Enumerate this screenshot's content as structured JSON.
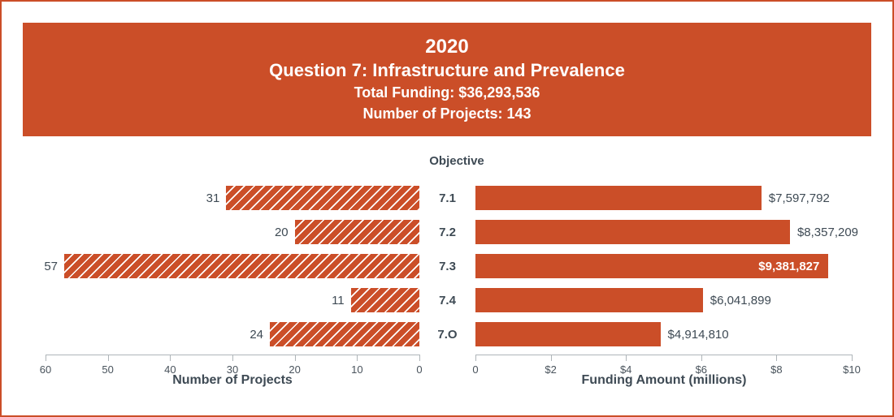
{
  "colors": {
    "accent": "#CB4E28",
    "text": "#3E4A54",
    "tick_text": "#49535C",
    "axis_line": "#AFB5B9",
    "background": "#FFFFFF"
  },
  "chart_data": {
    "type": "bar",
    "variant": "diverging-horizontal",
    "title_block": {
      "year": "2020",
      "title": "Question 7: Infrastructure and Prevalence",
      "total_funding": "Total Funding: $36,293,536",
      "number_of_projects": "Number of Projects: 143"
    },
    "center_header": "Objective",
    "categories": [
      "7.1",
      "7.2",
      "7.3",
      "7.4",
      "7.O"
    ],
    "left": {
      "name": "Number of Projects",
      "xlabel": "Number of Projects",
      "values": [
        31,
        20,
        57,
        11,
        24
      ],
      "value_labels": [
        "31",
        "20",
        "57",
        "11",
        "24"
      ],
      "ticks": [
        "60",
        "50",
        "40",
        "30",
        "20",
        "10",
        "0"
      ],
      "axis_min": 0,
      "axis_max": 60,
      "direction": "leftward",
      "bar_style": "hatched"
    },
    "right": {
      "name": "Funding Amount",
      "xlabel": "Funding Amount (millions)",
      "values": [
        7597792,
        8357209,
        9381827,
        6041899,
        4914810
      ],
      "value_labels": [
        "$7,597,792",
        "$8,357,209",
        "$9,381,827",
        "$6,041,899",
        "$4,914,810"
      ],
      "label_inside": [
        false,
        false,
        true,
        false,
        false
      ],
      "ticks": [
        "0",
        "$2",
        "$4",
        "$6",
        "$8",
        "$10"
      ],
      "axis_min_millions": 0,
      "axis_max_millions": 10,
      "direction": "rightward",
      "bar_style": "solid"
    }
  }
}
